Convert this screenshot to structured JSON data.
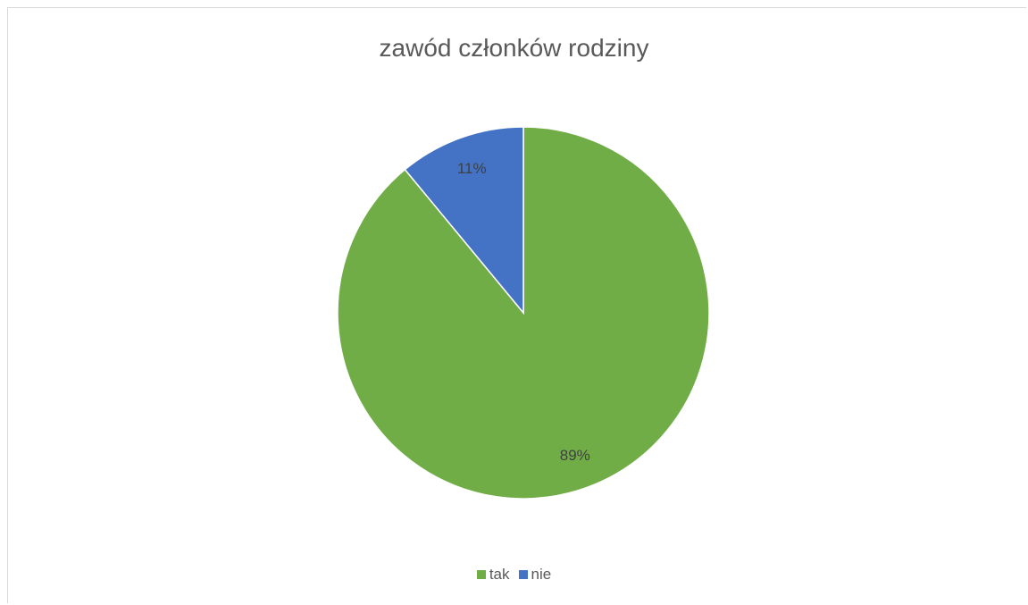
{
  "chart_data": {
    "type": "pie",
    "title": "zawód członków rodziny",
    "categories": [
      "tak",
      "nie"
    ],
    "values": [
      89,
      11
    ],
    "labels": [
      "89%",
      "11%"
    ],
    "colors": [
      "#70ad47",
      "#4472c4"
    ],
    "legend_position": "bottom"
  }
}
